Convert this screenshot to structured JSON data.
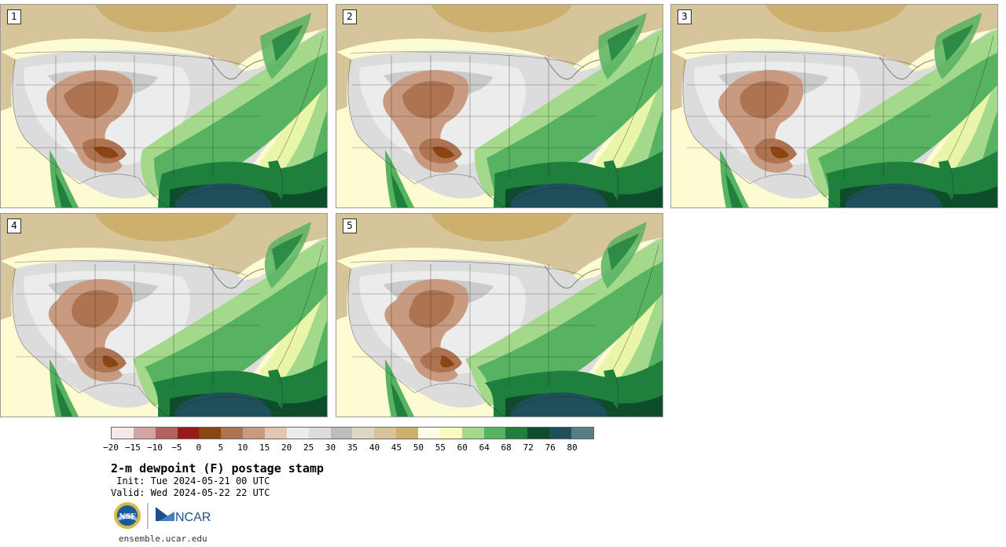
{
  "panels": [
    {
      "number": "1",
      "variant": 0
    },
    {
      "number": "2",
      "variant": 1
    },
    {
      "number": "3",
      "variant": 2
    },
    {
      "number": "4",
      "variant": 3
    },
    {
      "number": "5",
      "variant": 4
    }
  ],
  "legend": {
    "colors": [
      "#f4e8e8",
      "#d4a3a3",
      "#b56060",
      "#9a1a1a",
      "#8b4513",
      "#ae7350",
      "#c89a80",
      "#e3c6b4",
      "#ececec",
      "#dcdcdc",
      "#bdbdbd",
      "#dcd7c6",
      "#d6c49a",
      "#cdb06e",
      "#fefde6",
      "#fcf9c0",
      "#a4d88a",
      "#57b362",
      "#1f7f3c",
      "#0e4d2c",
      "#1f4f5b",
      "#557f82"
    ],
    "tick_labels": [
      "−20",
      "−15",
      "−10",
      "−5",
      "0",
      "5",
      "10",
      "15",
      "20",
      "25",
      "30",
      "35",
      "40",
      "45",
      "50",
      "55",
      "60",
      "64",
      "68",
      "72",
      "76",
      "80"
    ]
  },
  "title": "2-m dewpoint (F) postage stamp",
  "init_line": " Init: Tue 2024-05-21 00 UTC",
  "valid_line": "Valid: Wed 2024-05-22 22 UTC",
  "logo_nsf_text": "NSF",
  "logo_ncar_text": "NCAR",
  "url": "ensemble.ucar.edu"
}
